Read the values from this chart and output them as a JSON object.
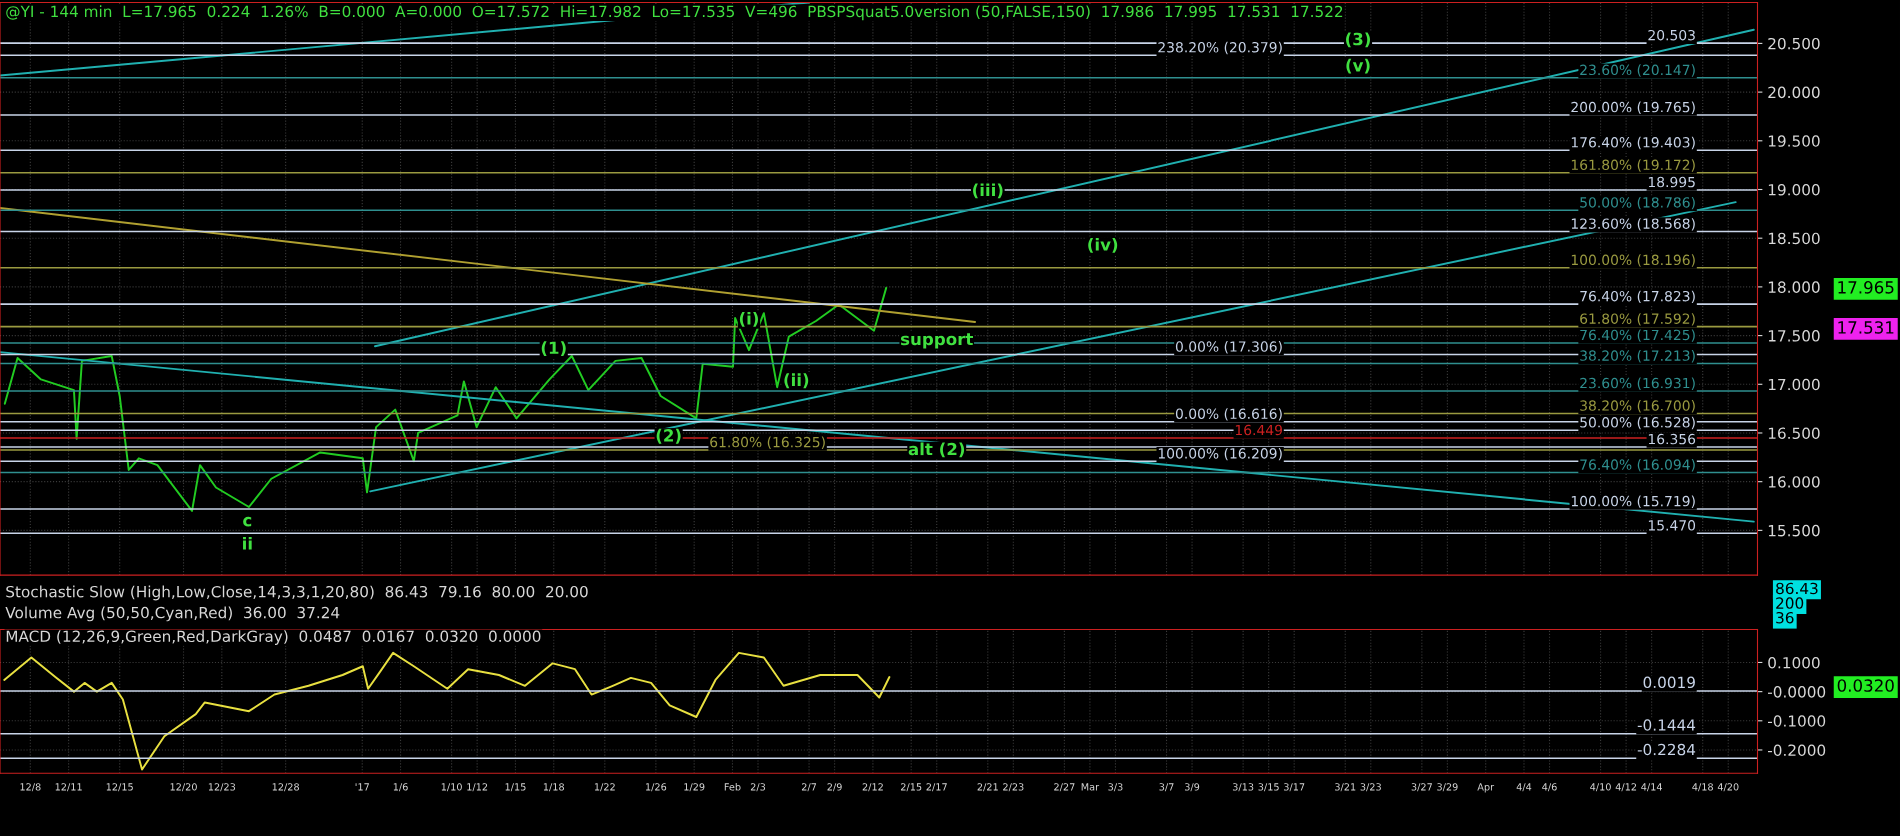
{
  "chart_data": [
    {
      "type": "line",
      "title": "@YI - 144 min  L=17.965  0.224  1.26%  B=0.000  A=0.000  O=17.572  Hi=17.982  Lo=17.535  V=496  PBSPSquat5.0version (50,FALSE,150)  17.986  17.995  17.531  17.522",
      "xlim": [
        "2016-12-05T15:00",
        "2017-04-22T07:00"
      ],
      "ylim": [
        15.04,
        20.92
      ],
      "yticks": [
        {
          "value": 15.5,
          "label": "15.500"
        },
        {
          "value": 16,
          "label": "16.000"
        },
        {
          "value": 16.5,
          "label": "16.500"
        },
        {
          "value": 17,
          "label": "17.000"
        },
        {
          "value": 17.5,
          "label": "17.500"
        },
        {
          "value": 18,
          "label": "18.000"
        },
        {
          "value": 18.5,
          "label": "18.500"
        },
        {
          "value": 19,
          "label": "19.000"
        },
        {
          "value": 19.5,
          "label": "19.500"
        },
        {
          "value": 20,
          "label": "20.000"
        },
        {
          "value": 20.5,
          "label": "20.500"
        }
      ],
      "tick_labels": "y",
      "grid": true,
      "series": [
        {
          "type": "line",
          "color": "#22cc22",
          "x": [
            "2016-12-06T00:00",
            "2016-12-07T00:00",
            "2016-12-08T20:00",
            "2016-12-11T10:00",
            "2016-12-11T15:00",
            "2016-12-12T01:00",
            "2016-12-14T09:00",
            "2016-12-15T00:00",
            "2016-12-15T17:00",
            "2016-12-16T12:00",
            "2016-12-17T23:00",
            "2016-12-20T16:00",
            "2016-12-21T07:00",
            "2016-12-22T13:00",
            "2016-12-25T03:00",
            "2016-12-26T21:00",
            "2016-12-30T17:00",
            "2017-01-03T01:00",
            "2017-01-03T09:00",
            "2017-01-04T02:00",
            "2017-01-05T14:00",
            "2017-01-07T01:00",
            "2017-01-07T09:00",
            "2017-01-10T11:00",
            "2017-01-10T23:00",
            "2017-01-11T23:00",
            "2017-01-13T11:00",
            "2017-01-15T02:00",
            "2017-01-17T16:00",
            "2017-01-19T10:00",
            "2017-01-20T17:00",
            "2017-01-22T20:00",
            "2017-01-24T21:00",
            "2017-01-26T09:00",
            "2017-01-29T04:00",
            "2017-01-29T16:00",
            "2017-02-01T01:00",
            "2017-02-01T05:00",
            "2017-02-02T07:00",
            "2017-02-03T11:00",
            "2017-02-04T12:00",
            "2017-02-05T10:00",
            "2017-02-07T13:00",
            "2017-02-09T08:00",
            "2017-02-12T02:00",
            "2017-02-13T01:00"
          ],
          "values": [
            16.8,
            17.27,
            17.05,
            16.94,
            16.44,
            17.24,
            17.29,
            16.88,
            16.12,
            16.24,
            16.17,
            15.7,
            16.17,
            15.94,
            15.74,
            16.03,
            16.3,
            16.24,
            15.89,
            16.56,
            16.74,
            16.21,
            16.5,
            16.68,
            17.03,
            16.56,
            16.97,
            16.65,
            17.05,
            17.29,
            16.94,
            17.24,
            17.27,
            16.88,
            16.65,
            17.21,
            17.18,
            17.68,
            17.35,
            17.73,
            16.97,
            17.49,
            17.65,
            17.82,
            17.55,
            17.99
          ]
        },
        {
          "type": "line",
          "color": "#20b0b0",
          "x": [
            "2017-01-03T15:00",
            "2017-04-20T14:00"
          ],
          "values": [
            15.9,
            18.87
          ]
        },
        {
          "type": "line",
          "color": "#20b0b0",
          "x": [
            "2017-01-04T00:00",
            "2017-04-22T00:00"
          ],
          "values": [
            17.39,
            20.64
          ]
        },
        {
          "type": "line",
          "color": "#20b0b0",
          "x": [
            "2016-12-05T15:00",
            "2017-02-07T00:00"
          ],
          "values": [
            20.17,
            20.92
          ]
        },
        {
          "type": "line",
          "color": "#20b0b0",
          "x": [
            "2016-12-05T15:00",
            "2017-04-22T00:00"
          ],
          "values": [
            17.33,
            15.59
          ]
        },
        {
          "type": "line",
          "color": "#b0a030",
          "x": [
            "2016-12-05T15:00",
            "2017-02-20T00:00"
          ],
          "values": [
            18.81,
            17.64
          ]
        }
      ],
      "ref_lines": [
        {
          "axis": "y",
          "value": 20.503,
          "label": "20.503",
          "color": "#c8d4e8"
        },
        {
          "axis": "y",
          "value": 20.379,
          "label": "238.20% (20.379)",
          "color": "#c8d4e8"
        },
        {
          "axis": "y",
          "value": 20.147,
          "label": "23.60% (20.147)",
          "color": "#2f8f8f"
        },
        {
          "axis": "y",
          "value": 19.765,
          "label": "200.00% (19.765)",
          "color": "#c8d4e8"
        },
        {
          "axis": "y",
          "value": 19.403,
          "label": "176.40% (19.403)",
          "color": "#c8d4e8"
        },
        {
          "axis": "y",
          "value": 19.172,
          "label": "161.80% (19.172)",
          "color": "#9a9a40"
        },
        {
          "axis": "y",
          "value": 18.995,
          "label": "18.995",
          "color": "#c8d4e8"
        },
        {
          "axis": "y",
          "value": 18.786,
          "label": "50.00% (18.786)",
          "color": "#2f8f8f"
        },
        {
          "axis": "y",
          "value": 18.568,
          "label": "123.60% (18.568)",
          "color": "#c8d4e8"
        },
        {
          "axis": "y",
          "value": 18.196,
          "label": "100.00% (18.196)",
          "color": "#9a9a40"
        },
        {
          "axis": "y",
          "value": 17.823,
          "label": "76.40% (17.823)",
          "color": "#c8d4e8"
        },
        {
          "axis": "y",
          "value": 17.592,
          "label": "61.80% (17.592)",
          "color": "#9a9a40"
        },
        {
          "axis": "y",
          "value": 17.425,
          "label": "76.40% (17.425)",
          "color": "#2f8f8f"
        },
        {
          "axis": "y",
          "value": 17.306,
          "label": "0.00% (17.306)",
          "color": "#c8d4e8"
        },
        {
          "axis": "y",
          "value": 17.213,
          "label": "38.20% (17.213)",
          "color": "#2f8f8f"
        },
        {
          "axis": "y",
          "value": 16.931,
          "label": "23.60% (16.931)",
          "color": "#2f8f8f"
        },
        {
          "axis": "y",
          "value": 16.7,
          "label": "38.20% (16.700)",
          "color": "#9a9a40"
        },
        {
          "axis": "y",
          "value": 16.616,
          "label": "0.00% (16.616)",
          "color": "#c8d4e8"
        },
        {
          "axis": "y",
          "value": 16.528,
          "label": "50.00% (16.528)",
          "color": "#c8d4e8"
        },
        {
          "axis": "y",
          "value": 16.449,
          "label": "16.449",
          "color": "#cc2020"
        },
        {
          "axis": "y",
          "value": 16.356,
          "label": "16.356",
          "color": "#c8d4e8"
        },
        {
          "axis": "y",
          "value": 16.325,
          "label": "61.80% (16.325)",
          "color": "#9a9a40"
        },
        {
          "axis": "y",
          "value": 16.209,
          "label": "100.00% (16.209)",
          "color": "#c8d4e8"
        },
        {
          "axis": "y",
          "value": 16.094,
          "label": "76.40% (16.094)",
          "color": "#2f8f8f"
        },
        {
          "axis": "y",
          "value": 15.719,
          "label": "100.00% (15.719)",
          "color": "#c8d4e8"
        },
        {
          "axis": "y",
          "value": 15.47,
          "label": "15.470",
          "color": "#c8d4e8"
        }
      ],
      "annotations": [
        {
          "text": "(3)",
          "x": "2017-03-22",
          "y": 20.53
        },
        {
          "text": "(v)",
          "x": "2017-03-22",
          "y": 20.26
        },
        {
          "text": "(iii)",
          "x": "2017-02-21",
          "y": 18.98
        },
        {
          "text": "(iv)",
          "x": "2017-03-02",
          "y": 18.42
        },
        {
          "text": "(i)",
          "x": "2017-02-02T07:00",
          "y": 17.66
        },
        {
          "text": "(ii)",
          "x": "2017-02-06",
          "y": 17.03
        },
        {
          "text": "(1)",
          "x": "2017-01-18",
          "y": 17.36
        },
        {
          "text": "(2)",
          "x": "2017-01-27",
          "y": 16.46
        },
        {
          "text": "alt (2)",
          "x": "2017-02-17",
          "y": 16.32
        },
        {
          "text": "c",
          "x": "2016-12-25",
          "y": 15.59
        },
        {
          "text": "ii",
          "x": "2016-12-25",
          "y": 15.35
        },
        {
          "text": "support",
          "x": "2017-02-17",
          "y": 17.45
        },
        "17.965",
        "17.531"
      ]
    },
    {
      "type": "other",
      "annotations": [
        "Stochastic Slow (High,Low,Close,14,3,3,1,20,80)  86.43  79.16  80.00  20.00",
        "Volume Avg (50,50,Cyan,Red)  36.00  37.24",
        "86.43",
        "200",
        "36"
      ]
    },
    {
      "type": "line",
      "title": "MACD (12,26,9,Green,Red,DarkGray)  0.0487  0.0167  0.0320  0.0000",
      "xlim": [
        "2016-12-05T15:00",
        "2017-04-22T07:00"
      ],
      "xticks": [
        {
          "value": "2016-12-08",
          "label": "12/8"
        },
        {
          "value": "2016-12-11",
          "label": "12/11"
        },
        {
          "value": "2016-12-15",
          "label": "12/15"
        },
        {
          "value": "2016-12-20",
          "label": "12/20"
        },
        {
          "value": "2016-12-23",
          "label": "12/23"
        },
        {
          "value": "2016-12-28",
          "label": "12/28"
        },
        {
          "value": "2017-01-03",
          "label": "'17"
        },
        {
          "value": "2017-01-06",
          "label": "1/6"
        },
        {
          "value": "2017-01-10",
          "label": "1/10"
        },
        {
          "value": "2017-01-12",
          "label": "1/12"
        },
        {
          "value": "2017-01-15",
          "label": "1/15"
        },
        {
          "value": "2017-01-18",
          "label": "1/18"
        },
        {
          "value": "2017-01-22",
          "label": "1/22"
        },
        {
          "value": "2017-01-26",
          "label": "1/26"
        },
        {
          "value": "2017-01-29",
          "label": "1/29"
        },
        {
          "value": "2017-02-01",
          "label": "Feb"
        },
        {
          "value": "2017-02-03",
          "label": "2/3"
        },
        {
          "value": "2017-02-07",
          "label": "2/7"
        },
        {
          "value": "2017-02-09",
          "label": "2/9"
        },
        {
          "value": "2017-02-12",
          "label": "2/12"
        },
        {
          "value": "2017-02-15",
          "label": "2/15"
        },
        {
          "value": "2017-02-17",
          "label": "2/17"
        },
        {
          "value": "2017-02-21",
          "label": "2/21"
        },
        {
          "value": "2017-02-23",
          "label": "2/23"
        },
        {
          "value": "2017-02-27",
          "label": "2/27"
        },
        {
          "value": "2017-03-01",
          "label": "Mar"
        },
        {
          "value": "2017-03-03",
          "label": "3/3"
        },
        {
          "value": "2017-03-07",
          "label": "3/7"
        },
        {
          "value": "2017-03-09",
          "label": "3/9"
        },
        {
          "value": "2017-03-13",
          "label": "3/13"
        },
        {
          "value": "2017-03-15",
          "label": "3/15"
        },
        {
          "value": "2017-03-17",
          "label": "3/17"
        },
        {
          "value": "2017-03-21",
          "label": "3/21"
        },
        {
          "value": "2017-03-23",
          "label": "3/23"
        },
        {
          "value": "2017-03-27",
          "label": "3/27"
        },
        {
          "value": "2017-03-29",
          "label": "3/29"
        },
        {
          "value": "2017-04-01",
          "label": "Apr"
        },
        {
          "value": "2017-04-04",
          "label": "4/4"
        },
        {
          "value": "2017-04-06",
          "label": "4/6"
        },
        {
          "value": "2017-04-10",
          "label": "4/10"
        },
        {
          "value": "2017-04-12",
          "label": "4/12"
        },
        {
          "value": "2017-04-14",
          "label": "4/14"
        },
        {
          "value": "2017-04-18",
          "label": "4/18"
        },
        {
          "value": "2017-04-20",
          "label": "4/20"
        }
      ],
      "ylim": [
        -0.28,
        0.213
      ],
      "yticks": [
        {
          "value": 0.1,
          "label": "0.1000"
        },
        {
          "value": 0,
          "label": "-0.0000"
        },
        {
          "value": -0.1,
          "label": "-0.1000"
        },
        {
          "value": -0.2,
          "label": "-0.2000"
        }
      ],
      "grid": true,
      "series": [
        {
          "color": "#e8e040",
          "x": [
            "2016-12-05T23:00",
            "2016-12-08T02:00",
            "2016-12-09T23:00",
            "2016-12-11T10:00",
            "2016-12-12T06:00",
            "2016-12-13T05:00",
            "2016-12-14T09:00",
            "2016-12-15T06:00",
            "2016-12-16T18:00",
            "2016-12-18T12:00",
            "2016-12-20T23:00",
            "2016-12-21T16:00",
            "2016-12-25T03:00",
            "2016-12-27T03:00",
            "2016-12-29T19:00",
            "2017-01-01T11:00",
            "2017-01-03T01:00",
            "2017-01-03T11:00",
            "2017-01-04T09:00",
            "2017-01-05T10:00",
            "2017-01-07T01:00",
            "2017-01-09T16:00",
            "2017-01-11T07:00",
            "2017-01-13T17:00",
            "2017-01-15T18:00",
            "2017-01-17T22:00",
            "2017-01-19T16:00",
            "2017-01-20T23:00",
            "2017-01-22T15:00",
            "2017-01-24T01:00",
            "2017-01-25T15:00",
            "2017-01-27T02:00",
            "2017-01-29T04:00",
            "2017-01-30T16:00",
            "2017-02-01T12:00",
            "2017-02-03T11:00",
            "2017-02-05T00:00",
            "2017-02-07T21:00",
            "2017-02-10T19:00",
            "2017-02-12T12:00",
            "2017-02-13T07:00"
          ],
          "values": [
            0.04,
            0.117,
            0.05,
            0,
            0.03,
            0,
            0.03,
            -0.027,
            -0.267,
            -0.153,
            -0.077,
            -0.037,
            -0.067,
            -0.01,
            0.02,
            0.057,
            0.087,
            0.01,
            0.067,
            0.133,
            0.087,
            0.01,
            0.077,
            0.057,
            0.02,
            0.097,
            0.077,
            -0.01,
            0.02,
            0.047,
            0.03,
            -0.047,
            -0.087,
            0.04,
            0.133,
            0.117,
            0.02,
            0.057,
            0.057,
            -0.02,
            0.05
          ]
        }
      ],
      "ref_lines": [
        {
          "axis": "y",
          "value": 0.0019,
          "label": "0.0019",
          "color": "#c8d4e8"
        },
        {
          "axis": "y",
          "value": -0.1444,
          "label": "-0.1444",
          "color": "#c8d4e8"
        },
        {
          "axis": "y",
          "value": -0.2284,
          "label": "-0.2284",
          "color": "#c8d4e8"
        }
      ],
      "annotations": [
        "0.0320"
      ]
    }
  ]
}
